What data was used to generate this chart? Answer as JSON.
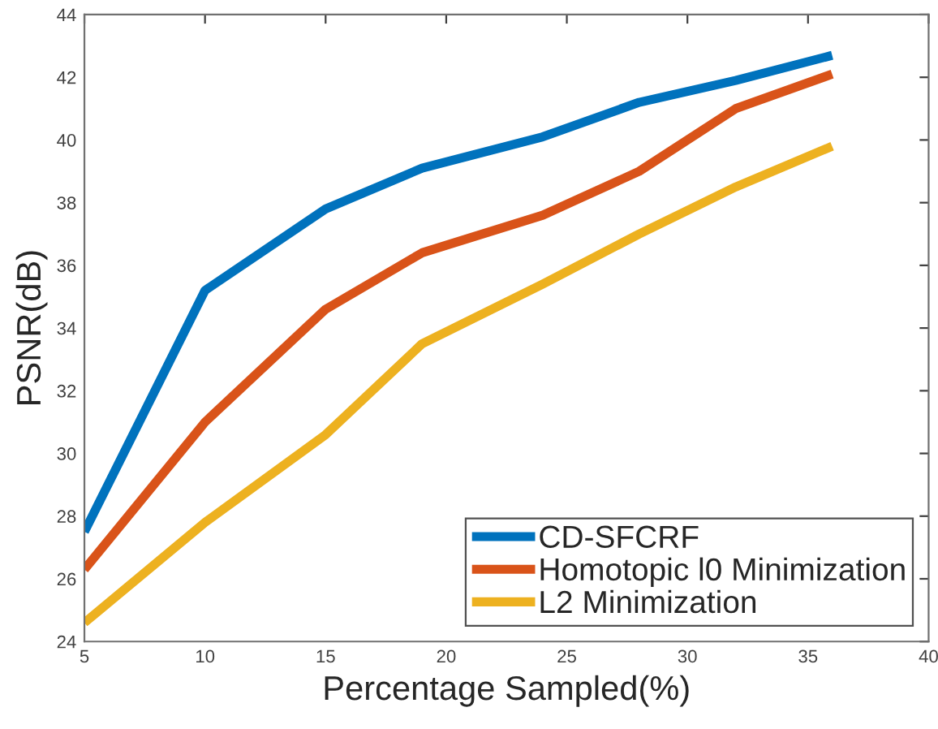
{
  "chart_data": {
    "type": "line",
    "xlabel": "Percentage Sampled(%)",
    "ylabel": "PSNR(dB)",
    "x": [
      5,
      10,
      15,
      19,
      24,
      28,
      32,
      36
    ],
    "series": [
      {
        "name": "CD-SFCRF",
        "color": "#0072bd",
        "values": [
          27.5,
          35.2,
          37.8,
          39.1,
          40.1,
          41.2,
          41.9,
          42.7
        ]
      },
      {
        "name": "Homotopic l0 Minimization",
        "color": "#d95319",
        "values": [
          26.3,
          31.0,
          34.6,
          36.4,
          37.6,
          39.0,
          41.0,
          42.1
        ]
      },
      {
        "name": "L2 Minimization",
        "color": "#edb120",
        "values": [
          24.6,
          27.8,
          30.6,
          33.5,
          35.4,
          37.0,
          38.5,
          39.8
        ]
      }
    ],
    "xlim": [
      5,
      40
    ],
    "xticks": [
      5,
      10,
      15,
      20,
      25,
      30,
      35,
      40
    ],
    "ylim": [
      24,
      44
    ],
    "yticks": [
      24,
      26,
      28,
      30,
      32,
      34,
      36,
      38,
      40,
      42,
      44
    ],
    "grid": false,
    "legend": "bottom right",
    "marker": "none",
    "line_style": "solid"
  }
}
